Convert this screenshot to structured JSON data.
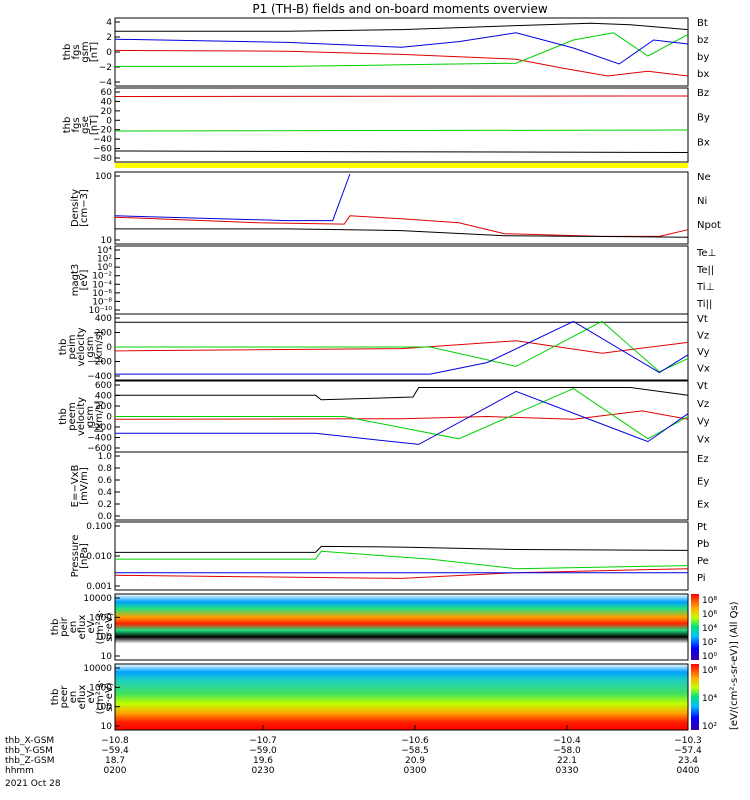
{
  "title": "P1 (TH-B) fields and on-board moments overview",
  "colors": {
    "black": "#000000",
    "red": "#e00000",
    "green": "#00d000",
    "blue": "#0000e0",
    "yellow": "#ffff00"
  },
  "chart_data": [
    {
      "type": "line",
      "ylabel": [
        "thb",
        "fgs",
        "gsm",
        "[nT]"
      ],
      "ylim": [
        -4,
        4
      ],
      "yticks": [
        "4",
        "2",
        "0",
        "−2",
        "−4"
      ],
      "series": [
        {
          "name": "Bt",
          "color": "#000000",
          "x": [
            0,
            0.3,
            0.5,
            0.7,
            0.83,
            0.9,
            1
          ],
          "y": [
            2.6,
            2.6,
            2.8,
            3.3,
            3.6,
            3.4,
            2.8
          ]
        },
        {
          "name": "bz",
          "color": "#e00000",
          "x": [
            0,
            0.3,
            0.5,
            0.7,
            0.78,
            0.86,
            0.93,
            1
          ],
          "y": [
            0.2,
            0.1,
            -0.3,
            -0.9,
            -2.0,
            -3.0,
            -2.4,
            -3.0
          ]
        },
        {
          "name": "by",
          "color": "#00d000",
          "x": [
            0,
            0.3,
            0.5,
            0.7,
            0.8,
            0.87,
            0.93,
            1
          ],
          "y": [
            -1.8,
            -1.8,
            -1.6,
            -1.4,
            1.5,
            2.4,
            -0.5,
            2.2
          ]
        },
        {
          "name": "bx",
          "color": "#0000e0",
          "x": [
            0,
            0.3,
            0.5,
            0.6,
            0.7,
            0.8,
            0.88,
            0.94,
            1
          ],
          "y": [
            1.6,
            1.2,
            0.6,
            1.3,
            2.4,
            0.5,
            -1.5,
            1.5,
            1.0
          ]
        }
      ]
    },
    {
      "type": "line",
      "ylabel": [
        "thb",
        "fgs",
        "gse",
        "[nT]"
      ],
      "ylim": [
        -80,
        60
      ],
      "yticks": [
        "60",
        "40",
        "20",
        "0",
        "−20",
        "−40",
        "−60",
        "−80"
      ],
      "series": [
        {
          "name": "Bz",
          "color": "#e00000",
          "x": [
            0,
            1
          ],
          "y": [
            47,
            48
          ]
        },
        {
          "name": "By",
          "color": "#00d000",
          "x": [
            0,
            1
          ],
          "y": [
            -22,
            -20
          ]
        },
        {
          "name": "Bx",
          "color": "#000000",
          "x": [
            0,
            1
          ],
          "y": [
            -62,
            -65
          ]
        }
      ]
    },
    {
      "type": "line",
      "ylabel": [
        "Density",
        "[cm−3]"
      ],
      "ylim_log": [
        1,
        300
      ],
      "yticks": [
        "100",
        "10"
      ],
      "series": [
        {
          "name": "Ne",
          "color": "#e00000",
          "x": [
            0,
            0.25,
            0.4,
            0.41,
            0.5,
            0.6,
            0.68,
            0.85,
            0.95,
            1
          ],
          "y": [
            8,
            5,
            4.5,
            9,
            7,
            5,
            2,
            1.6,
            1.6,
            2.8
          ]
        },
        {
          "name": "Ni",
          "color": "#000000",
          "x": [
            0,
            0.3,
            0.5,
            0.68,
            1
          ],
          "y": [
            3,
            3,
            2.6,
            1.7,
            1.5
          ]
        },
        {
          "name": "Npot",
          "color": "#0000e0",
          "x": [
            0,
            0.3,
            0.38,
            0.41
          ],
          "y": [
            9,
            6,
            6,
            300
          ]
        }
      ]
    },
    {
      "type": "line",
      "ylabel": [
        "magt3",
        "[eV]"
      ],
      "yticks": [
        "10⁴",
        "10²",
        "10⁰",
        "10⁻²",
        "10⁻⁴",
        "10⁻⁶",
        "10⁻⁸",
        "10⁻¹⁰"
      ],
      "legend": [
        "Te⊥",
        "Te||",
        "Ti⊥",
        "Ti||"
      ]
    },
    {
      "type": "line",
      "ylabel": [
        "thb",
        "peim",
        "velocity",
        "gsm",
        "[km/s]"
      ],
      "ylim": [
        -400,
        400
      ],
      "yticks": [
        "400",
        "200",
        "0",
        "−200",
        "−400"
      ],
      "series": [
        {
          "name": "Vt",
          "color": "#000000",
          "x": [
            0,
            1
          ],
          "y": [
            320,
            320
          ]
        },
        {
          "name": "Vz",
          "color": "#e00000",
          "x": [
            0,
            0.5,
            0.7,
            0.85,
            1
          ],
          "y": [
            -50,
            -20,
            80,
            -80,
            60
          ]
        },
        {
          "name": "Vy",
          "color": "#00d000",
          "x": [
            0,
            0.55,
            0.7,
            0.85,
            0.95,
            1
          ],
          "y": [
            0,
            0,
            -250,
            330,
            -320,
            -150
          ]
        },
        {
          "name": "Vx",
          "color": "#0000e0",
          "x": [
            0,
            0.55,
            0.65,
            0.8,
            0.95,
            1
          ],
          "y": [
            -350,
            -350,
            -200,
            330,
            -330,
            -100
          ]
        }
      ]
    },
    {
      "type": "line",
      "ylabel": [
        "thb",
        "peem",
        "velocity",
        "gsm",
        "[km/s]"
      ],
      "ylim": [
        -600,
        600
      ],
      "yticks": [
        "600",
        "400",
        "200",
        "0",
        "−200",
        "−400",
        "−600"
      ],
      "series": [
        {
          "name": "Vt",
          "color": "#000000",
          "x": [
            0,
            0.35,
            0.36,
            0.52,
            0.53,
            0.9,
            1
          ],
          "y": [
            380,
            380,
            300,
            350,
            520,
            520,
            380
          ]
        },
        {
          "name": "Vz",
          "color": "#e00000",
          "x": [
            0,
            0.5,
            0.65,
            0.8,
            0.92,
            1
          ],
          "y": [
            -50,
            -40,
            0,
            -50,
            100,
            -50
          ]
        },
        {
          "name": "Vy",
          "color": "#00d000",
          "x": [
            0,
            0.4,
            0.6,
            0.8,
            0.93,
            1
          ],
          "y": [
            0,
            0,
            -400,
            500,
            -400,
            0
          ]
        },
        {
          "name": "Vx",
          "color": "#0000e0",
          "x": [
            0,
            0.35,
            0.53,
            0.7,
            0.93,
            1
          ],
          "y": [
            -300,
            -300,
            -500,
            450,
            -450,
            50
          ]
        }
      ]
    },
    {
      "type": "line",
      "ylabel": [
        "E=−VxB",
        "[mV/m]"
      ],
      "ylim": [
        0,
        1
      ],
      "yticks": [
        "1.0",
        "0.8",
        "0.6",
        "0.4",
        "0.2",
        "0.0"
      ],
      "legend": [
        "Ez",
        "Ey",
        "Ex"
      ]
    },
    {
      "type": "line",
      "ylabel": [
        "Pressure",
        "[nPa]"
      ],
      "ylim_log": [
        0.001,
        0.1
      ],
      "yticks": [
        "0.100",
        "0.010",
        "0.001"
      ],
      "series": [
        {
          "name": "Pt",
          "color": "#000000",
          "x": [
            0,
            0.35,
            0.36,
            0.5,
            0.7,
            1
          ],
          "y": [
            0.013,
            0.013,
            0.02,
            0.019,
            0.016,
            0.015
          ]
        },
        {
          "name": "Pb",
          "color": "#e00000",
          "x": [
            0,
            0.5,
            0.7,
            1
          ],
          "y": [
            0.0025,
            0.002,
            0.003,
            0.004
          ]
        },
        {
          "name": "Pe",
          "color": "#00d000",
          "x": [
            0,
            0.35,
            0.36,
            0.55,
            0.7,
            1
          ],
          "y": [
            0.008,
            0.008,
            0.014,
            0.008,
            0.004,
            0.005
          ]
        },
        {
          "name": "Pi",
          "color": "#0000e0",
          "x": [
            0,
            0.5,
            1
          ],
          "y": [
            0.003,
            0.003,
            0.003
          ]
        }
      ]
    },
    {
      "type": "heatmap",
      "ylabel": [
        "thb",
        "peir",
        "en",
        "eflux",
        "eV",
        "(cm²·s·",
        "sr·eV)"
      ],
      "yticks": [
        "10000",
        "1000",
        "100",
        "10"
      ]
    },
    {
      "type": "heatmap",
      "ylabel": [
        "thb",
        "peer",
        "en",
        "eflux",
        "eV",
        "(cm²·s·",
        "sr·eV)"
      ],
      "yticks": [
        "10000",
        "1000",
        "100",
        "10"
      ]
    }
  ],
  "colorbars": [
    {
      "ticks": [
        "10⁸",
        "10⁶",
        "10⁴",
        "10²",
        "10⁰"
      ],
      "label": "[eV/(cm²-s-sr-eV)] (All Qs)"
    },
    {
      "ticks": [
        "10⁶",
        "10⁴",
        "10²"
      ],
      "label": "eV/(cm^2-s-sr-eV)]"
    }
  ],
  "xaxis": {
    "rows": [
      {
        "label": "thb_X-GSM",
        "values": [
          "−10.8",
          "−10.7",
          "−10.6",
          "−10.4",
          "−10.3"
        ]
      },
      {
        "label": "thb_Y-GSM",
        "values": [
          "−59.4",
          "−59.0",
          "−58.5",
          "−58.0",
          "−57.4"
        ]
      },
      {
        "label": "thb_Z-GSM",
        "values": [
          "18.7",
          "19.6",
          "20.9",
          "22.1",
          "23.4"
        ]
      },
      {
        "label": "hhmm",
        "values": [
          "0200",
          "0230",
          "0300",
          "0330",
          "0400"
        ]
      }
    ],
    "date": "2021 Oct 28"
  }
}
